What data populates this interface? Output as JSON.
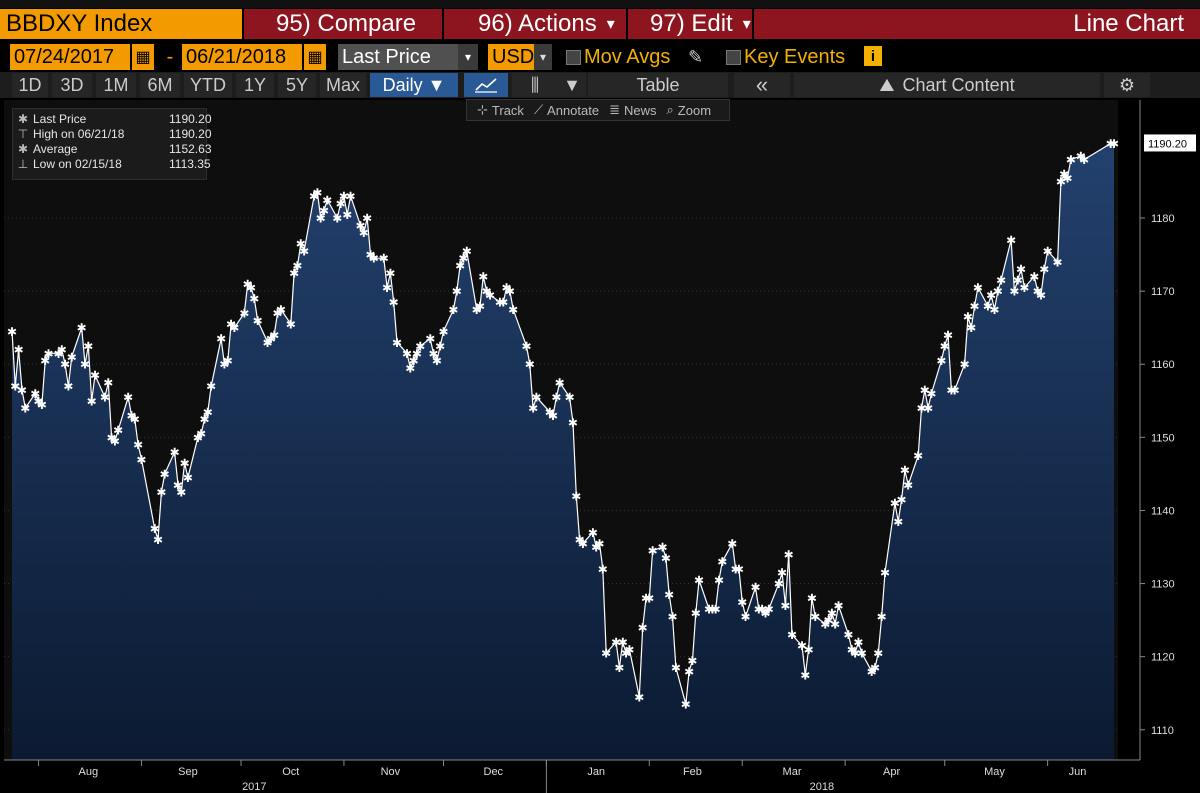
{
  "header": {
    "title": "BBDXY Index",
    "compare": "95) Compare",
    "actions": "96) Actions",
    "edit": "97) Edit",
    "chart_type": "Line Chart"
  },
  "controls": {
    "start_date": "07/24/2017",
    "dash": "-",
    "end_date": "06/21/2018",
    "field": "Last Price",
    "currency": "USD",
    "mov_avgs": "Mov Avgs",
    "key_events": "Key Events",
    "info": "i"
  },
  "periods": [
    "1D",
    "3D",
    "1M",
    "6M",
    "YTD",
    "1Y",
    "5Y",
    "Max"
  ],
  "frequency": "Daily ▼",
  "toolbar": {
    "table": "Table",
    "back": "«",
    "chart_content": "Chart Content"
  },
  "tools": [
    "Track",
    "Annotate",
    "News",
    "Zoom"
  ],
  "legend": [
    {
      "symbol": "✱",
      "label": "Last Price",
      "value": "1190.20"
    },
    {
      "symbol": "⊤",
      "label": "High on 06/21/18",
      "value": "1190.20"
    },
    {
      "symbol": "✱",
      "label": "Average",
      "value": "1152.63"
    },
    {
      "symbol": "⊥",
      "label": "Low on 02/15/18",
      "value": "1113.35"
    }
  ],
  "colors": {
    "orange": "#f39a00",
    "red": "#8c1520",
    "area_top": "#23416e",
    "area_bottom": "#0b1a31",
    "line": "#ffffff"
  },
  "chart_data": {
    "type": "area",
    "title": "BBDXY Index",
    "ylim": [
      1106,
      1193
    ],
    "y_ticks": [
      1110,
      1120,
      1130,
      1140,
      1150,
      1160,
      1170,
      1180
    ],
    "last_label": "1190.20",
    "x_range": [
      "2017-07-24",
      "2018-06-21"
    ],
    "x_month_labels": [
      "Aug",
      "Sep",
      "Oct",
      "Nov",
      "Dec",
      "Jan",
      "Feb",
      "Mar",
      "Apr",
      "May",
      "Jun"
    ],
    "x_year_labels": [
      "2017",
      "2018"
    ],
    "series": [
      {
        "name": "Last Price",
        "points": [
          [
            "2017-07-24",
            1164.5
          ],
          [
            "2017-07-25",
            1157.0
          ],
          [
            "2017-07-26",
            1162.0
          ],
          [
            "2017-07-27",
            1156.5
          ],
          [
            "2017-07-28",
            1154.0
          ],
          [
            "2017-07-31",
            1156.0
          ],
          [
            "2017-08-01",
            1155.0
          ],
          [
            "2017-08-02",
            1154.5
          ],
          [
            "2017-08-03",
            1160.5
          ],
          [
            "2017-08-04",
            1161.5
          ],
          [
            "2017-08-07",
            1161.5
          ],
          [
            "2017-08-08",
            1162.0
          ],
          [
            "2017-08-09",
            1160.0
          ],
          [
            "2017-08-10",
            1157.0
          ],
          [
            "2017-08-11",
            1161.0
          ],
          [
            "2017-08-14",
            1165.0
          ],
          [
            "2017-08-15",
            1160.0
          ],
          [
            "2017-08-16",
            1162.5
          ],
          [
            "2017-08-17",
            1155.0
          ],
          [
            "2017-08-18",
            1158.5
          ],
          [
            "2017-08-21",
            1155.5
          ],
          [
            "2017-08-22",
            1157.5
          ],
          [
            "2017-08-23",
            1150.0
          ],
          [
            "2017-08-24",
            1149.5
          ],
          [
            "2017-08-25",
            1151.0
          ],
          [
            "2017-08-28",
            1155.5
          ],
          [
            "2017-08-29",
            1153.0
          ],
          [
            "2017-08-30",
            1152.5
          ],
          [
            "2017-08-31",
            1149.0
          ],
          [
            "2017-09-01",
            1147.0
          ],
          [
            "2017-09-05",
            1137.5
          ],
          [
            "2017-09-06",
            1136.0
          ],
          [
            "2017-09-07",
            1142.5
          ],
          [
            "2017-09-08",
            1145.0
          ],
          [
            "2017-09-11",
            1148.0
          ],
          [
            "2017-09-12",
            1143.5
          ],
          [
            "2017-09-13",
            1142.5
          ],
          [
            "2017-09-14",
            1146.5
          ],
          [
            "2017-09-15",
            1144.5
          ],
          [
            "2017-09-18",
            1150.0
          ],
          [
            "2017-09-19",
            1150.5
          ],
          [
            "2017-09-20",
            1152.5
          ],
          [
            "2017-09-21",
            1153.5
          ],
          [
            "2017-09-22",
            1157.0
          ],
          [
            "2017-09-25",
            1163.5
          ],
          [
            "2017-09-26",
            1160.0
          ],
          [
            "2017-09-27",
            1160.5
          ],
          [
            "2017-09-28",
            1165.5
          ],
          [
            "2017-09-29",
            1165.0
          ],
          [
            "2017-10-02",
            1167.0
          ],
          [
            "2017-10-03",
            1171.0
          ],
          [
            "2017-10-04",
            1170.5
          ],
          [
            "2017-10-05",
            1169.0
          ],
          [
            "2017-10-06",
            1166.0
          ],
          [
            "2017-10-09",
            1163.0
          ],
          [
            "2017-10-10",
            1163.5
          ],
          [
            "2017-10-11",
            1164.0
          ],
          [
            "2017-10-12",
            1167.0
          ],
          [
            "2017-10-13",
            1167.5
          ],
          [
            "2017-10-16",
            1165.5
          ],
          [
            "2017-10-17",
            1172.5
          ],
          [
            "2017-10-18",
            1173.5
          ],
          [
            "2017-10-19",
            1176.5
          ],
          [
            "2017-10-20",
            1175.5
          ],
          [
            "2017-10-23",
            1183.0
          ],
          [
            "2017-10-24",
            1183.5
          ],
          [
            "2017-10-25",
            1180.0
          ],
          [
            "2017-10-26",
            1181.0
          ],
          [
            "2017-10-27",
            1182.5
          ],
          [
            "2017-10-30",
            1180.0
          ],
          [
            "2017-10-31",
            1182.0
          ],
          [
            "2017-11-01",
            1183.0
          ],
          [
            "2017-11-02",
            1180.5
          ],
          [
            "2017-11-03",
            1183.0
          ],
          [
            "2017-11-06",
            1179.0
          ],
          [
            "2017-11-07",
            1178.0
          ],
          [
            "2017-11-08",
            1180.0
          ],
          [
            "2017-11-09",
            1175.0
          ],
          [
            "2017-11-10",
            1174.5
          ],
          [
            "2017-11-13",
            1174.5
          ],
          [
            "2017-11-14",
            1170.5
          ],
          [
            "2017-11-15",
            1172.5
          ],
          [
            "2017-11-16",
            1168.5
          ],
          [
            "2017-11-17",
            1163.0
          ],
          [
            "2017-11-20",
            1161.5
          ],
          [
            "2017-11-21",
            1159.5
          ],
          [
            "2017-11-22",
            1160.5
          ],
          [
            "2017-11-23",
            1161.5
          ],
          [
            "2017-11-24",
            1162.5
          ],
          [
            "2017-11-27",
            1163.5
          ],
          [
            "2017-11-28",
            1161.5
          ],
          [
            "2017-11-29",
            1160.5
          ],
          [
            "2017-11-30",
            1162.5
          ],
          [
            "2017-12-01",
            1164.5
          ],
          [
            "2017-12-04",
            1167.5
          ],
          [
            "2017-12-05",
            1170.0
          ],
          [
            "2017-12-06",
            1173.5
          ],
          [
            "2017-12-07",
            1174.5
          ],
          [
            "2017-12-08",
            1175.5
          ],
          [
            "2017-12-11",
            1167.5
          ],
          [
            "2017-12-12",
            1168.0
          ],
          [
            "2017-12-13",
            1172.0
          ],
          [
            "2017-12-14",
            1170.0
          ],
          [
            "2017-12-15",
            1169.5
          ],
          [
            "2017-12-18",
            1168.5
          ],
          [
            "2017-12-19",
            1168.5
          ],
          [
            "2017-12-20",
            1170.5
          ],
          [
            "2017-12-21",
            1170.0
          ],
          [
            "2017-12-22",
            1167.5
          ],
          [
            "2017-12-26",
            1162.5
          ],
          [
            "2017-12-27",
            1160.0
          ],
          [
            "2017-12-28",
            1154.0
          ],
          [
            "2017-12-29",
            1155.5
          ],
          [
            "2018-01-02",
            1153.5
          ],
          [
            "2018-01-03",
            1153.0
          ],
          [
            "2018-01-04",
            1155.5
          ],
          [
            "2018-01-05",
            1157.5
          ],
          [
            "2018-01-08",
            1155.5
          ],
          [
            "2018-01-09",
            1152.0
          ],
          [
            "2018-01-10",
            1142.0
          ],
          [
            "2018-01-11",
            1136.0
          ],
          [
            "2018-01-12",
            1135.5
          ],
          [
            "2018-01-15",
            1137.0
          ],
          [
            "2018-01-16",
            1135.0
          ],
          [
            "2018-01-17",
            1135.5
          ],
          [
            "2018-01-18",
            1132.0
          ],
          [
            "2018-01-19",
            1120.5
          ],
          [
            "2018-01-22",
            1122.0
          ],
          [
            "2018-01-23",
            1118.5
          ],
          [
            "2018-01-24",
            1122.0
          ],
          [
            "2018-01-25",
            1120.5
          ],
          [
            "2018-01-26",
            1121.0
          ],
          [
            "2018-01-29",
            1114.5
          ],
          [
            "2018-01-30",
            1124.0
          ],
          [
            "2018-01-31",
            1128.0
          ],
          [
            "2018-02-01",
            1128.0
          ],
          [
            "2018-02-02",
            1134.5
          ],
          [
            "2018-02-05",
            1135.0
          ],
          [
            "2018-02-06",
            1133.5
          ],
          [
            "2018-02-07",
            1128.5
          ],
          [
            "2018-02-08",
            1125.5
          ],
          [
            "2018-02-09",
            1118.5
          ],
          [
            "2018-02-12",
            1113.5
          ],
          [
            "2018-02-13",
            1118.0
          ],
          [
            "2018-02-14",
            1119.5
          ],
          [
            "2018-02-15",
            1126.0
          ],
          [
            "2018-02-16",
            1130.5
          ],
          [
            "2018-02-19",
            1126.5
          ],
          [
            "2018-02-20",
            1126.5
          ],
          [
            "2018-02-21",
            1126.5
          ],
          [
            "2018-02-22",
            1130.5
          ],
          [
            "2018-02-23",
            1133.0
          ],
          [
            "2018-02-26",
            1135.5
          ],
          [
            "2018-02-27",
            1132.0
          ],
          [
            "2018-02-28",
            1132.0
          ],
          [
            "2018-03-01",
            1127.5
          ],
          [
            "2018-03-02",
            1125.5
          ],
          [
            "2018-03-05",
            1129.5
          ],
          [
            "2018-03-06",
            1126.5
          ],
          [
            "2018-03-07",
            1126.5
          ],
          [
            "2018-03-08",
            1126.0
          ],
          [
            "2018-03-09",
            1126.5
          ],
          [
            "2018-03-12",
            1130.0
          ],
          [
            "2018-03-13",
            1131.5
          ],
          [
            "2018-03-14",
            1127.0
          ],
          [
            "2018-03-15",
            1134.0
          ],
          [
            "2018-03-16",
            1123.0
          ],
          [
            "2018-03-19",
            1121.5
          ],
          [
            "2018-03-20",
            1117.5
          ],
          [
            "2018-03-21",
            1121.0
          ],
          [
            "2018-03-22",
            1128.0
          ],
          [
            "2018-03-23",
            1125.5
          ],
          [
            "2018-03-26",
            1124.5
          ],
          [
            "2018-03-27",
            1125.0
          ],
          [
            "2018-03-28",
            1126.0
          ],
          [
            "2018-03-29",
            1124.5
          ],
          [
            "2018-03-30",
            1127.0
          ],
          [
            "2018-04-02",
            1123.0
          ],
          [
            "2018-04-03",
            1121.0
          ],
          [
            "2018-04-04",
            1120.5
          ],
          [
            "2018-04-05",
            1122.0
          ],
          [
            "2018-04-06",
            1120.5
          ],
          [
            "2018-04-09",
            1118.0
          ],
          [
            "2018-04-10",
            1118.5
          ],
          [
            "2018-04-11",
            1120.5
          ],
          [
            "2018-04-12",
            1125.5
          ],
          [
            "2018-04-13",
            1131.5
          ],
          [
            "2018-04-16",
            1141.0
          ],
          [
            "2018-04-17",
            1138.5
          ],
          [
            "2018-04-18",
            1141.5
          ],
          [
            "2018-04-19",
            1145.5
          ],
          [
            "2018-04-20",
            1143.5
          ],
          [
            "2018-04-23",
            1147.5
          ],
          [
            "2018-04-24",
            1154.0
          ],
          [
            "2018-04-25",
            1156.5
          ],
          [
            "2018-04-26",
            1154.0
          ],
          [
            "2018-04-27",
            1156.0
          ],
          [
            "2018-04-30",
            1160.5
          ],
          [
            "2018-05-01",
            1162.5
          ],
          [
            "2018-05-02",
            1164.0
          ],
          [
            "2018-05-03",
            1156.5
          ],
          [
            "2018-05-04",
            1156.5
          ],
          [
            "2018-05-07",
            1160.0
          ],
          [
            "2018-05-08",
            1166.5
          ],
          [
            "2018-05-09",
            1165.0
          ],
          [
            "2018-05-10",
            1168.0
          ],
          [
            "2018-05-11",
            1170.5
          ],
          [
            "2018-05-14",
            1168.0
          ],
          [
            "2018-05-15",
            1169.5
          ],
          [
            "2018-05-16",
            1167.5
          ],
          [
            "2018-05-17",
            1170.0
          ],
          [
            "2018-05-18",
            1171.5
          ],
          [
            "2018-05-21",
            1177.0
          ],
          [
            "2018-05-22",
            1170.0
          ],
          [
            "2018-05-23",
            1171.5
          ],
          [
            "2018-05-24",
            1173.0
          ],
          [
            "2018-05-25",
            1170.5
          ],
          [
            "2018-05-28",
            1172.0
          ],
          [
            "2018-05-29",
            1170.0
          ],
          [
            "2018-05-30",
            1169.5
          ],
          [
            "2018-05-31",
            1173.0
          ],
          [
            "2018-06-01",
            1175.5
          ],
          [
            "2018-06-04",
            1174.0
          ],
          [
            "2018-06-05",
            1185.0
          ],
          [
            "2018-06-06",
            1186.0
          ],
          [
            "2018-06-07",
            1185.5
          ],
          [
            "2018-06-08",
            1188.0
          ],
          [
            "2018-06-11",
            1188.5
          ],
          [
            "2018-06-12",
            1188.0
          ],
          [
            "2018-06-20",
            1190.2
          ],
          [
            "2018-06-21",
            1190.2
          ]
        ]
      }
    ]
  }
}
